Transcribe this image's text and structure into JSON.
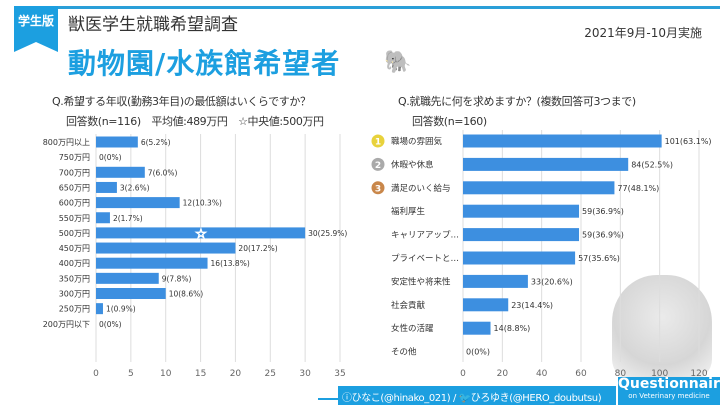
{
  "header": {
    "badge": "学生版",
    "subtitle": "獣医学生就職希望調査",
    "date": "2021年9月-10月実施",
    "title": "動物園/水族館希望者",
    "title_icon": "elephant-icon"
  },
  "colors": {
    "accent": "#1c9fe0",
    "bar": "#3d8fe0"
  },
  "footer": {
    "credits": "ⓘひなこ(@hinako_021)  /  🐦ひろゆき(@HERO_doubutsu)",
    "brand": "Questionnaire",
    "brand_sub": "on Veterinary medicine"
  },
  "chart_data": [
    {
      "type": "bar",
      "orientation": "horizontal",
      "title": "Q.希望する年収(勤務3年目)の最低額はいくらですか？",
      "subtitle": "回答数(n=116)　平均値:489万円　☆中央値:500万円",
      "categories": [
        "800万円以上",
        "750万円",
        "700万円",
        "650万円",
        "600万円",
        "550万円",
        "500万円",
        "450万円",
        "400万円",
        "350万円",
        "300万円",
        "250万円",
        "200万円以下"
      ],
      "values": [
        6,
        0,
        7,
        3,
        12,
        2,
        30,
        20,
        16,
        9,
        10,
        1,
        0
      ],
      "labels": [
        "6(5.2%)",
        "0(0%)",
        "7(6.0%)",
        "3(2.6%)",
        "12(10.3%)",
        "2(1.7%)",
        "30(25.9%)",
        "20(17.2%)",
        "16(13.8%)",
        "9(7.8%)",
        "10(8.6%)",
        "1(0.9%)",
        "0(0%)"
      ],
      "median_marker": {
        "category": "500万円",
        "symbol": "☆"
      },
      "xlim": [
        0,
        35
      ],
      "xticks": [
        0,
        5,
        10,
        15,
        20,
        25,
        30,
        35
      ],
      "grid": true
    },
    {
      "type": "bar",
      "orientation": "horizontal",
      "title": "Q.就職先に何を求めますか？(複数回答可3つまで)",
      "subtitle": "回答数(n=160)",
      "categories": [
        "職場の雰囲気",
        "休暇や休息",
        "満足のいく給与",
        "福利厚生",
        "キャリアアップ…",
        "プライベートと…",
        "安定性や将来性",
        "社会貢献",
        "女性の活躍",
        "その他"
      ],
      "values": [
        101,
        84,
        77,
        59,
        59,
        57,
        33,
        23,
        14,
        0
      ],
      "labels": [
        "101(63.1%)",
        "84(52.5%)",
        "77(48.1%)",
        "59(36.9%)",
        "59(36.9%)",
        "57(35.6%)",
        "33(20.6%)",
        "23(14.4%)",
        "14(8.8%)",
        "0(0%)"
      ],
      "rank_icons": [
        "gold-crown-1-icon",
        "silver-medal-2-icon",
        "bronze-medal-3-icon"
      ],
      "xlim": [
        0,
        120
      ],
      "xticks": [
        0,
        20,
        40,
        60,
        80,
        100,
        120
      ],
      "grid": true
    }
  ]
}
